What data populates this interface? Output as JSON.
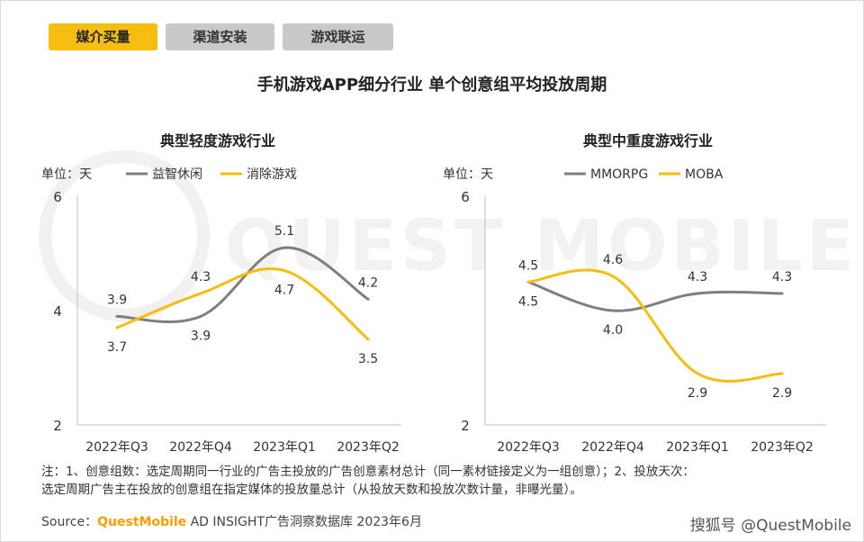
{
  "tabs": [
    {
      "label": "媒介买量",
      "active": true
    },
    {
      "label": "渠道安装",
      "active": false
    },
    {
      "label": "游戏联运",
      "active": false
    }
  ],
  "main_title": "手机游戏APP细分行业 单个创意组平均投放周期",
  "chart_data": [
    {
      "type": "line",
      "title": "典型轻度游戏行业",
      "unit_label": "单位：天",
      "categories": [
        "2022年Q3",
        "2022年Q4",
        "2023年Q1",
        "2023年Q2"
      ],
      "y_ticks": [
        "6",
        "4",
        "2"
      ],
      "ylim": [
        2,
        6
      ],
      "legend_position": "top-left",
      "series": [
        {
          "name": "益智休闲",
          "color": "#7f7f7f",
          "values": [
            3.9,
            3.9,
            5.1,
            4.2
          ],
          "labels": [
            "3.9",
            "3.9",
            "5.1",
            "4.2"
          ]
        },
        {
          "name": "消除游戏",
          "color": "#f5bd0f",
          "values": [
            3.7,
            4.3,
            4.7,
            3.5
          ],
          "labels": [
            "3.7",
            "4.3",
            "4.7",
            "3.5"
          ]
        }
      ]
    },
    {
      "type": "line",
      "title": "典型中重度游戏行业",
      "unit_label": "单位：天",
      "categories": [
        "2022年Q3",
        "2022年Q4",
        "2023年Q1",
        "2023年Q2"
      ],
      "y_ticks": [
        "6",
        "",
        "2"
      ],
      "ylim": [
        2,
        6
      ],
      "legend_position": "top-left",
      "series": [
        {
          "name": "MMORPG",
          "color": "#7f7f7f",
          "values": [
            4.5,
            4.0,
            4.3,
            4.3
          ],
          "labels": [
            "4.5",
            "4.0",
            "4.3",
            "4.3"
          ]
        },
        {
          "name": "MOBA",
          "color": "#f5bd0f",
          "values": [
            4.5,
            4.6,
            2.9,
            2.9
          ],
          "labels": [
            "4.5",
            "4.6",
            "2.9",
            "2.9"
          ]
        }
      ]
    }
  ],
  "notes": [
    "注：1、创意组数：选定周期同一行业的广告主投放的广告创意素材总计（同一素材链接定义为一组创意）；2、投放天次：",
    "选定周期广告主在投放的创意组在指定媒体的投放量总计（从投放天数和投放次数计量，非曝光量）。"
  ],
  "source": {
    "prefix": "Source：",
    "brand": "QuestMobile",
    "rest": " AD INSIGHT广告洞察数据库 2023年6月"
  },
  "credit": "搜狐号 @QuestMobile",
  "watermark": "QUEST MOBILE"
}
